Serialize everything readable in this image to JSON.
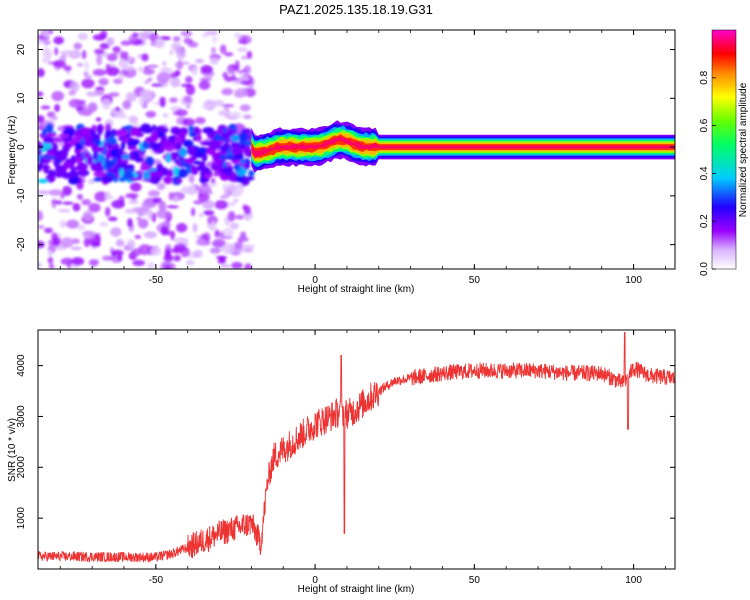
{
  "title": "PAZ1.2025.135.18.19.G31",
  "chart_data": [
    {
      "type": "heatmap",
      "name": "spectrogram",
      "xlabel": "Height of straight line (km)",
      "ylabel": "Frequency (Hz)",
      "xlim": [
        -87,
        113
      ],
      "ylim": [
        -25,
        24
      ],
      "xticks": [
        -50,
        0,
        50,
        100
      ],
      "yticks": [
        -20,
        -10,
        0,
        10,
        20
      ],
      "colorbar": {
        "label": "Normalized spectral amplitude",
        "range": [
          0,
          1
        ],
        "ticks": [
          0.0,
          0.2,
          0.4,
          0.6,
          0.8
        ],
        "colormap": "rainbow (white-violet-blue-cyan-green-yellow-red-magenta)"
      },
      "features": {
        "tone_frequency_hz": 0,
        "tone_start_km": -20,
        "tone_end_km": 113,
        "bump_near_km": 8,
        "bump_peak_hz": 1.5,
        "noisy_region_km": [
          -87,
          -20
        ],
        "noisy_region_main_band_hz": [
          -7,
          4
        ]
      }
    },
    {
      "type": "line",
      "name": "snr",
      "xlabel": "Height of straight line (km)",
      "ylabel": "SNR (10 * v/v)",
      "xlim": [
        -87,
        113
      ],
      "ylim": [
        0,
        4700
      ],
      "xticks": [
        -50,
        0,
        50,
        100
      ],
      "yticks": [
        1000,
        2000,
        3000,
        4000
      ],
      "color": "#ee3333",
      "series": [
        {
          "name": "SNR envelope",
          "x": [
            -87,
            -50,
            -45,
            -40,
            -30,
            -20,
            -17,
            -15,
            -13,
            -10,
            -5,
            0,
            5,
            8,
            10,
            12,
            15,
            20,
            25,
            30,
            40,
            50,
            60,
            70,
            80,
            90,
            95,
            97,
            100,
            105,
            113
          ],
          "y": [
            250,
            230,
            300,
            420,
            700,
            900,
            500,
            1700,
            2200,
            2350,
            2600,
            2850,
            3000,
            3100,
            3050,
            3100,
            3250,
            3500,
            3700,
            3750,
            3850,
            3900,
            3900,
            3900,
            3850,
            3850,
            3700,
            3650,
            3950,
            3800,
            3750
          ]
        }
      ],
      "annotations": [
        {
          "x": 8,
          "y": 4200,
          "note": "spike"
        },
        {
          "x": 9,
          "y": 700,
          "note": "dip"
        },
        {
          "x": 97,
          "y": 4650,
          "note": "spike"
        },
        {
          "x": 98,
          "y": 2750,
          "note": "dip"
        }
      ]
    }
  ]
}
